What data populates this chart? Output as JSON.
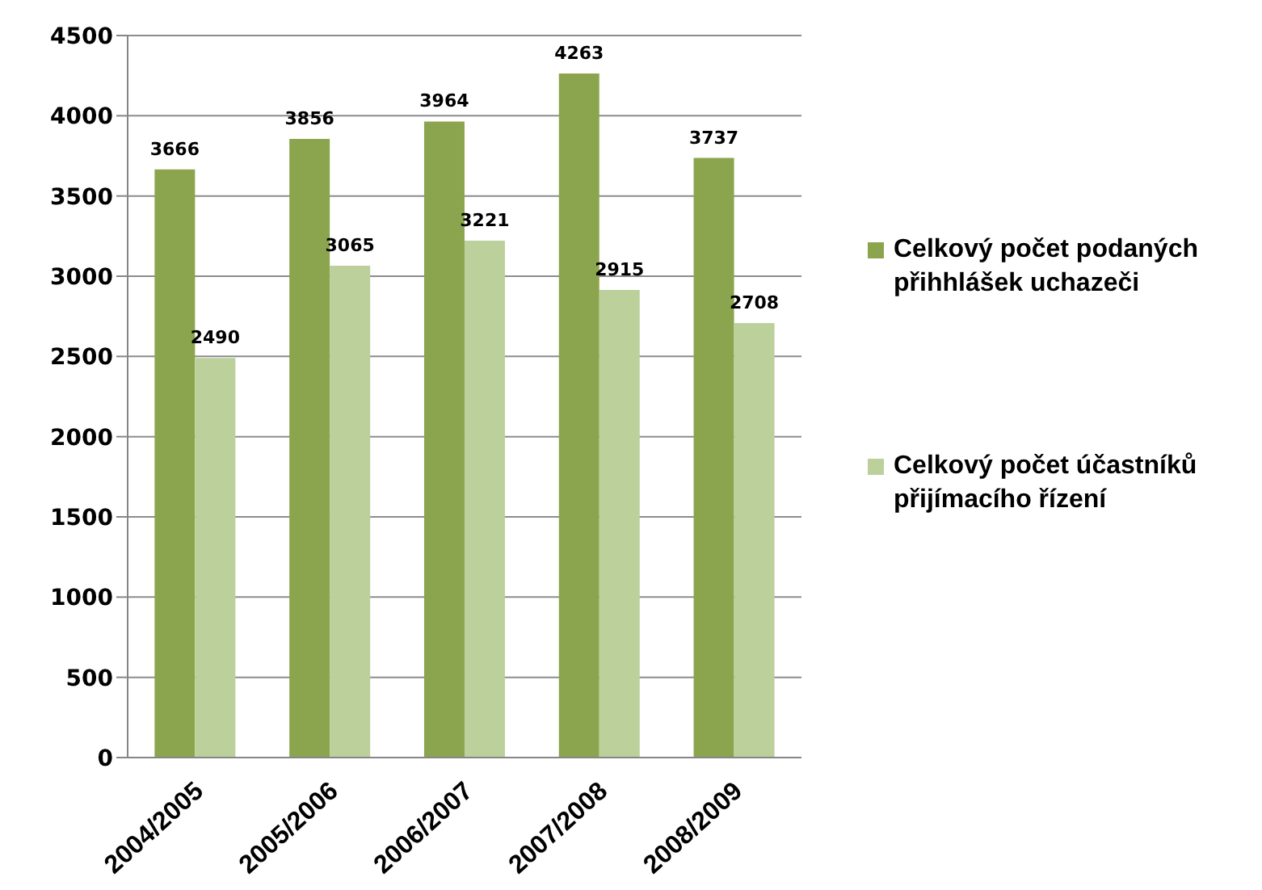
{
  "chart_data": {
    "type": "bar",
    "categories": [
      "2004/2005",
      "2005/2006",
      "2006/2007",
      "2007/2008",
      "2008/2009"
    ],
    "series": [
      {
        "name": "Celkový počet podaných přihhlášek uchazeči",
        "color": "#8ba54e",
        "values": [
          3666,
          3856,
          3964,
          4263,
          3737
        ]
      },
      {
        "name": "Celkový počet účastníků přijímacího řízení",
        "color": "#bbd09a",
        "values": [
          2490,
          3065,
          3221,
          2915,
          2708
        ]
      }
    ],
    "ylim": [
      0,
      4500
    ],
    "yticks": [
      0,
      500,
      1000,
      1500,
      2000,
      2500,
      3000,
      3500,
      4000,
      4500
    ],
    "grid": "y",
    "legend": "right",
    "data_labels": true
  }
}
